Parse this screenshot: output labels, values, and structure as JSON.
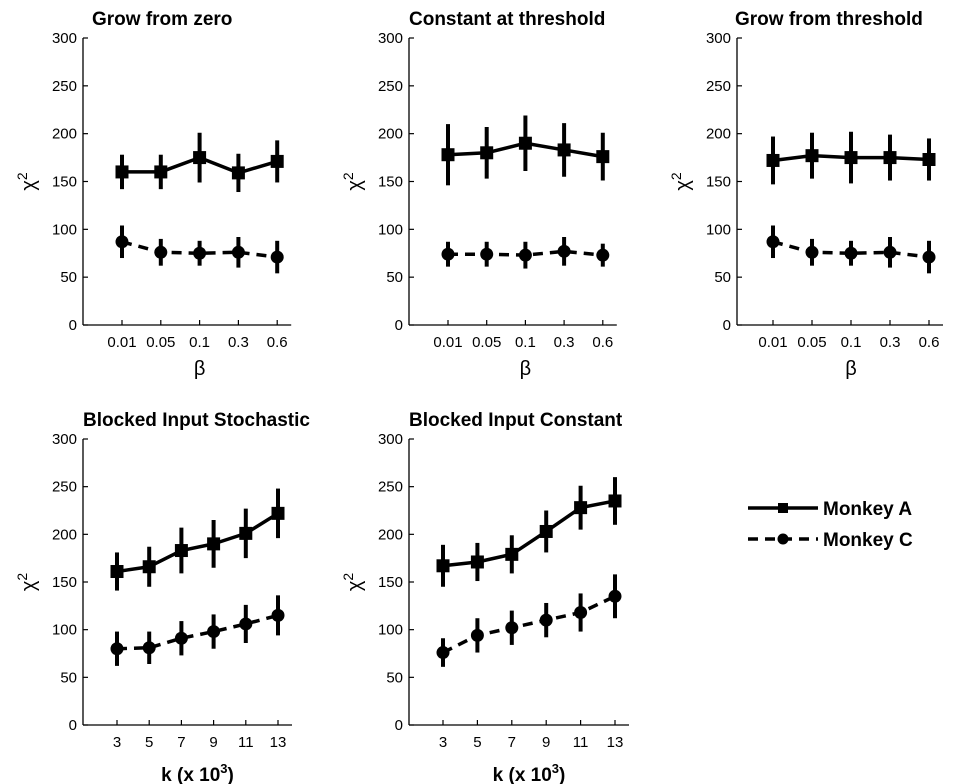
{
  "legend": {
    "entries": [
      {
        "label": "Monkey A",
        "style": "solid",
        "marker": "square"
      },
      {
        "label": "Monkey C",
        "style": "dashed",
        "marker": "circle"
      }
    ]
  },
  "chart_data": [
    {
      "type": "line",
      "title": "Grow from zero",
      "xlabel": "β",
      "ylabel": "χ2",
      "categories": [
        "0.01",
        "0.05",
        "0.1",
        "0.3",
        "0.6"
      ],
      "ylim": [
        0,
        300
      ],
      "yticks": [
        0,
        50,
        100,
        150,
        200,
        250,
        300
      ],
      "series": [
        {
          "name": "Monkey A",
          "values": [
            160,
            160,
            175,
            159,
            171
          ],
          "errors": [
            18,
            18,
            26,
            20,
            22
          ]
        },
        {
          "name": "Monkey C",
          "values": [
            87,
            76,
            75,
            76,
            71
          ],
          "errors": [
            17,
            14,
            13,
            16,
            17
          ]
        }
      ]
    },
    {
      "type": "line",
      "title": "Constant at threshold",
      "xlabel": "β",
      "ylabel": "χ2",
      "categories": [
        "0.01",
        "0.05",
        "0.1",
        "0.3",
        "0.6"
      ],
      "ylim": [
        0,
        300
      ],
      "yticks": [
        0,
        50,
        100,
        150,
        200,
        250,
        300
      ],
      "series": [
        {
          "name": "Monkey A",
          "values": [
            178,
            180,
            190,
            183,
            176
          ],
          "errors": [
            32,
            27,
            29,
            28,
            25
          ]
        },
        {
          "name": "Monkey C",
          "values": [
            74,
            74,
            73,
            77,
            73
          ],
          "errors": [
            13,
            13,
            14,
            15,
            12
          ]
        }
      ]
    },
    {
      "type": "line",
      "title": "Grow from threshold",
      "xlabel": "β",
      "ylabel": "χ2",
      "categories": [
        "0.01",
        "0.05",
        "0.1",
        "0.3",
        "0.6"
      ],
      "ylim": [
        0,
        300
      ],
      "yticks": [
        0,
        50,
        100,
        150,
        200,
        250,
        300
      ],
      "series": [
        {
          "name": "Monkey A",
          "values": [
            172,
            177,
            175,
            175,
            173
          ],
          "errors": [
            25,
            24,
            27,
            24,
            22
          ]
        },
        {
          "name": "Monkey C",
          "values": [
            87,
            76,
            75,
            76,
            71
          ],
          "errors": [
            17,
            14,
            13,
            16,
            17
          ]
        }
      ]
    },
    {
      "type": "line",
      "title": "Blocked Input Stochastic",
      "xlabel": "k (x 10^3)",
      "ylabel": "χ2",
      "categories": [
        "3",
        "5",
        "7",
        "9",
        "11",
        "13"
      ],
      "ylim": [
        0,
        300
      ],
      "yticks": [
        0,
        50,
        100,
        150,
        200,
        250,
        300
      ],
      "series": [
        {
          "name": "Monkey A",
          "values": [
            161,
            166,
            183,
            190,
            201,
            222
          ],
          "errors": [
            20,
            21,
            24,
            25,
            26,
            26
          ]
        },
        {
          "name": "Monkey C",
          "values": [
            80,
            81,
            91,
            98,
            106,
            115
          ],
          "errors": [
            18,
            17,
            18,
            18,
            20,
            21
          ]
        }
      ]
    },
    {
      "type": "line",
      "title": "Blocked Input Constant",
      "xlabel": "k (x 10^3)",
      "ylabel": "χ2",
      "categories": [
        "3",
        "5",
        "7",
        "9",
        "11",
        "13"
      ],
      "ylim": [
        0,
        300
      ],
      "yticks": [
        0,
        50,
        100,
        150,
        200,
        250,
        300
      ],
      "series": [
        {
          "name": "Monkey A",
          "values": [
            167,
            171,
            179,
            203,
            228,
            235
          ],
          "errors": [
            22,
            20,
            20,
            22,
            23,
            25
          ]
        },
        {
          "name": "Monkey C",
          "values": [
            76,
            94,
            102,
            110,
            118,
            135
          ],
          "errors": [
            15,
            18,
            18,
            18,
            20,
            23
          ]
        }
      ]
    }
  ]
}
